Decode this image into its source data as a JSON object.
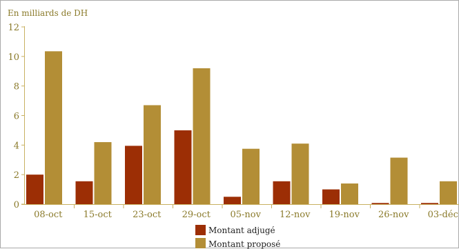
{
  "chart_data": {
    "type": "bar",
    "ylabel": "En milliards de DH",
    "xlabel": "",
    "ylim": [
      0,
      12
    ],
    "yticks": [
      0,
      2,
      4,
      6,
      8,
      10,
      12
    ],
    "grid": false,
    "legend_position": "bottom-center",
    "categories": [
      "08-oct",
      "15-oct",
      "23-oct",
      "29-oct",
      "05-nov",
      "12-nov",
      "19-nov",
      "26-nov",
      "03-déc"
    ],
    "series": [
      {
        "name": "Montant adjugé",
        "color": "#9c2e05",
        "values": [
          2.0,
          1.55,
          3.95,
          5.0,
          0.5,
          1.55,
          1.0,
          0.08,
          0.08
        ]
      },
      {
        "name": "Montant proposé",
        "color": "#b38e36",
        "values": [
          10.35,
          4.2,
          6.7,
          9.2,
          3.75,
          4.1,
          1.4,
          3.15,
          1.55
        ]
      }
    ]
  }
}
